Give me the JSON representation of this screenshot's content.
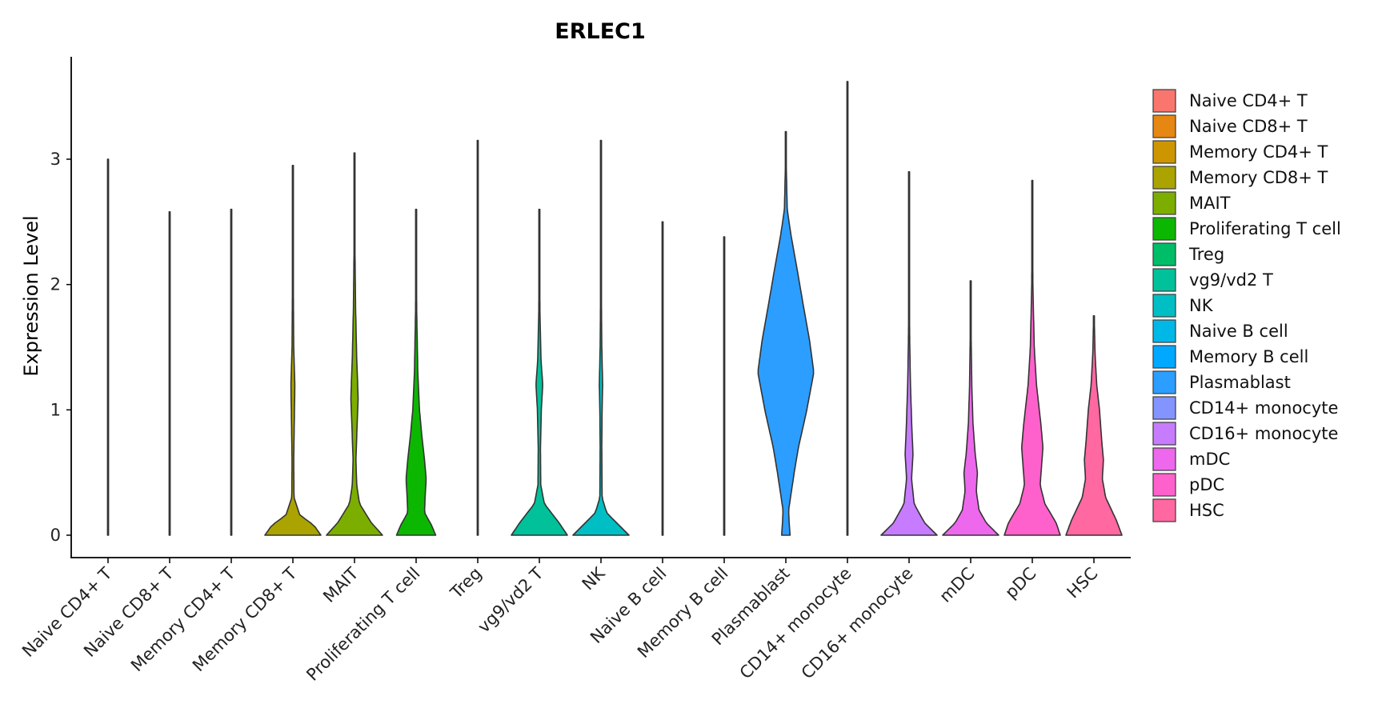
{
  "chart_data": {
    "type": "violin",
    "title": "ERLEC1",
    "xlabel": "",
    "ylabel": "Expression Level",
    "ylim": [
      -0.18,
      3.82
    ],
    "yticks": [
      0,
      1,
      2,
      3
    ],
    "legend_position": "right",
    "grid": false,
    "categories": [
      "Naive CD4+ T",
      "Naive CD8+ T",
      "Memory CD4+ T",
      "Memory CD8+ T",
      "MAIT",
      "Proliferating T cell",
      "Treg",
      "vg9/vd2 T",
      "NK",
      "Naive B cell",
      "Memory B cell",
      "Plasmablast",
      "CD14+ monocyte",
      "CD16+ monocyte",
      "mDC",
      "pDC",
      "HSC"
    ],
    "colors": [
      "#F8766D",
      "#E68613",
      "#CD9600",
      "#ABA300",
      "#7CAE00",
      "#0CB702",
      "#00BE67",
      "#00C19A",
      "#00BFC4",
      "#00B8E7",
      "#00A9FF",
      "#2C9EFF",
      "#8494FF",
      "#C77CFF",
      "#ED68ED",
      "#FF61CC",
      "#FF68A1"
    ],
    "series": [
      {
        "name": "Naive CD4+ T",
        "max": 3.0,
        "density": [
          [
            0,
            0.008
          ],
          [
            0.05,
            0.002
          ],
          [
            3.0,
            0.002
          ]
        ]
      },
      {
        "name": "Naive CD8+ T",
        "max": 2.58,
        "density": [
          [
            0,
            0.006
          ],
          [
            0.05,
            0.002
          ],
          [
            2.58,
            0.002
          ]
        ]
      },
      {
        "name": "Memory CD4+ T",
        "max": 2.6,
        "density": [
          [
            0,
            0.008
          ],
          [
            0.05,
            0.002
          ],
          [
            2.6,
            0.002
          ]
        ]
      },
      {
        "name": "Memory CD8+ T",
        "max": 2.95,
        "density": [
          [
            0,
            1.0
          ],
          [
            0.08,
            0.75
          ],
          [
            0.16,
            0.25
          ],
          [
            0.3,
            0.04
          ],
          [
            0.6,
            0.03
          ],
          [
            0.9,
            0.05
          ],
          [
            1.2,
            0.07
          ],
          [
            1.5,
            0.03
          ],
          [
            2.0,
            0.015
          ],
          [
            2.95,
            0.005
          ]
        ]
      },
      {
        "name": "MAIT",
        "max": 3.05,
        "density": [
          [
            0,
            1.0
          ],
          [
            0.1,
            0.6
          ],
          [
            0.25,
            0.18
          ],
          [
            0.4,
            0.08
          ],
          [
            0.6,
            0.05
          ],
          [
            0.85,
            0.09
          ],
          [
            1.1,
            0.13
          ],
          [
            1.4,
            0.08
          ],
          [
            1.8,
            0.04
          ],
          [
            2.4,
            0.01
          ],
          [
            3.05,
            0.005
          ]
        ]
      },
      {
        "name": "Proliferating T cell",
        "max": 2.6,
        "density": [
          [
            0,
            0.7
          ],
          [
            0.08,
            0.55
          ],
          [
            0.18,
            0.3
          ],
          [
            0.3,
            0.32
          ],
          [
            0.45,
            0.36
          ],
          [
            0.6,
            0.3
          ],
          [
            0.8,
            0.2
          ],
          [
            1.0,
            0.12
          ],
          [
            1.3,
            0.06
          ],
          [
            1.8,
            0.02
          ],
          [
            2.6,
            0.005
          ]
        ]
      },
      {
        "name": "Treg",
        "max": 3.15,
        "density": [
          [
            0,
            0.008
          ],
          [
            0.05,
            0.002
          ],
          [
            3.15,
            0.002
          ]
        ]
      },
      {
        "name": "vg9/vd2 T",
        "max": 2.6,
        "density": [
          [
            0,
            1.0
          ],
          [
            0.1,
            0.7
          ],
          [
            0.25,
            0.18
          ],
          [
            0.4,
            0.05
          ],
          [
            0.7,
            0.04
          ],
          [
            1.0,
            0.07
          ],
          [
            1.2,
            0.12
          ],
          [
            1.4,
            0.06
          ],
          [
            1.8,
            0.02
          ],
          [
            2.6,
            0.005
          ]
        ]
      },
      {
        "name": "NK",
        "max": 3.15,
        "density": [
          [
            0,
            1.0
          ],
          [
            0.1,
            0.55
          ],
          [
            0.18,
            0.2
          ],
          [
            0.3,
            0.04
          ],
          [
            0.7,
            0.03
          ],
          [
            1.0,
            0.04
          ],
          [
            1.2,
            0.06
          ],
          [
            1.5,
            0.03
          ],
          [
            2.0,
            0.01
          ],
          [
            3.15,
            0.005
          ]
        ]
      },
      {
        "name": "Naive B cell",
        "max": 2.5,
        "density": [
          [
            0,
            0.008
          ],
          [
            0.05,
            0.002
          ],
          [
            2.5,
            0.002
          ]
        ]
      },
      {
        "name": "Memory B cell",
        "max": 2.38,
        "density": [
          [
            0,
            0.008
          ],
          [
            0.05,
            0.002
          ],
          [
            2.38,
            0.002
          ]
        ]
      },
      {
        "name": "Plasmablast",
        "max": 3.22,
        "density": [
          [
            0,
            0.15
          ],
          [
            0.1,
            0.12
          ],
          [
            0.2,
            0.1
          ],
          [
            0.35,
            0.2
          ],
          [
            0.5,
            0.3
          ],
          [
            0.7,
            0.45
          ],
          [
            1.0,
            0.75
          ],
          [
            1.3,
            1.0
          ],
          [
            1.55,
            0.85
          ],
          [
            1.8,
            0.65
          ],
          [
            2.1,
            0.42
          ],
          [
            2.4,
            0.18
          ],
          [
            2.6,
            0.05
          ],
          [
            3.0,
            0.01
          ],
          [
            3.22,
            0.005
          ]
        ]
      },
      {
        "name": "CD14+ monocyte",
        "max": 3.62,
        "density": [
          [
            0,
            0.008
          ],
          [
            0.05,
            0.002
          ],
          [
            3.62,
            0.002
          ]
        ]
      },
      {
        "name": "CD16+ monocyte",
        "max": 2.9,
        "density": [
          [
            0,
            1.0
          ],
          [
            0.1,
            0.55
          ],
          [
            0.25,
            0.18
          ],
          [
            0.45,
            0.09
          ],
          [
            0.65,
            0.14
          ],
          [
            0.85,
            0.1
          ],
          [
            1.2,
            0.05
          ],
          [
            1.6,
            0.02
          ],
          [
            2.2,
            0.008
          ],
          [
            2.9,
            0.003
          ]
        ]
      },
      {
        "name": "mDC",
        "max": 2.03,
        "density": [
          [
            0,
            1.0
          ],
          [
            0.1,
            0.55
          ],
          [
            0.2,
            0.3
          ],
          [
            0.35,
            0.2
          ],
          [
            0.5,
            0.24
          ],
          [
            0.65,
            0.16
          ],
          [
            0.9,
            0.08
          ],
          [
            1.2,
            0.04
          ],
          [
            1.6,
            0.015
          ],
          [
            2.03,
            0.005
          ]
        ]
      },
      {
        "name": "pDC",
        "max": 2.83,
        "density": [
          [
            0,
            1.0
          ],
          [
            0.1,
            0.85
          ],
          [
            0.25,
            0.45
          ],
          [
            0.4,
            0.28
          ],
          [
            0.55,
            0.33
          ],
          [
            0.7,
            0.38
          ],
          [
            0.9,
            0.3
          ],
          [
            1.2,
            0.15
          ],
          [
            1.5,
            0.07
          ],
          [
            2.0,
            0.02
          ],
          [
            2.83,
            0.005
          ]
        ]
      },
      {
        "name": "HSC",
        "max": 1.75,
        "density": [
          [
            0,
            1.0
          ],
          [
            0.12,
            0.8
          ],
          [
            0.3,
            0.42
          ],
          [
            0.45,
            0.3
          ],
          [
            0.6,
            0.34
          ],
          [
            0.75,
            0.28
          ],
          [
            1.0,
            0.2
          ],
          [
            1.2,
            0.1
          ],
          [
            1.45,
            0.04
          ],
          [
            1.75,
            0.01
          ]
        ]
      }
    ]
  }
}
